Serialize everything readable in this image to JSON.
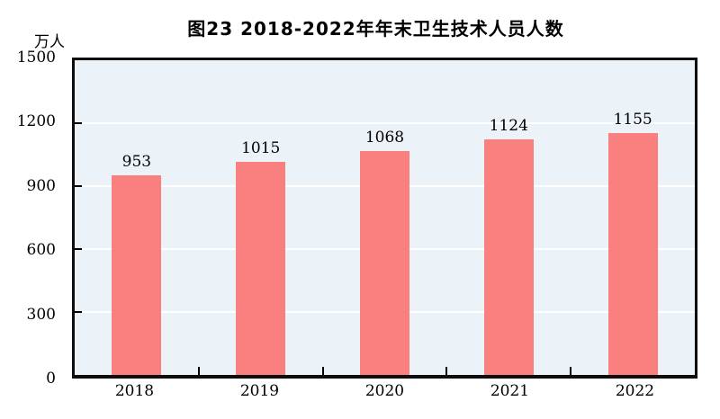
{
  "header": {
    "title": "图23  2018-2022年年末卫生技术人员人数"
  },
  "chart_data": {
    "type": "bar",
    "title": "图23  2018-2022年年末卫生技术人员人数",
    "unit_label": "万人",
    "categories": [
      "2018",
      "2019",
      "2020",
      "2021",
      "2022"
    ],
    "values": [
      953,
      1015,
      1068,
      1124,
      1155
    ],
    "value_labels_shown": true,
    "xlabel": "",
    "ylabel": "万人",
    "ylim": [
      0,
      1500
    ],
    "yticks": [
      0,
      300,
      600,
      900,
      1200,
      1500
    ],
    "grid": true,
    "legend_position": "none",
    "colors": {
      "bar": "#FA8080",
      "plot_background": "#EBF2F8",
      "gridline": "#FFFFFF",
      "frame": "#0D0D0D",
      "text": "#000000",
      "page_background": "#FFFFFF"
    }
  }
}
